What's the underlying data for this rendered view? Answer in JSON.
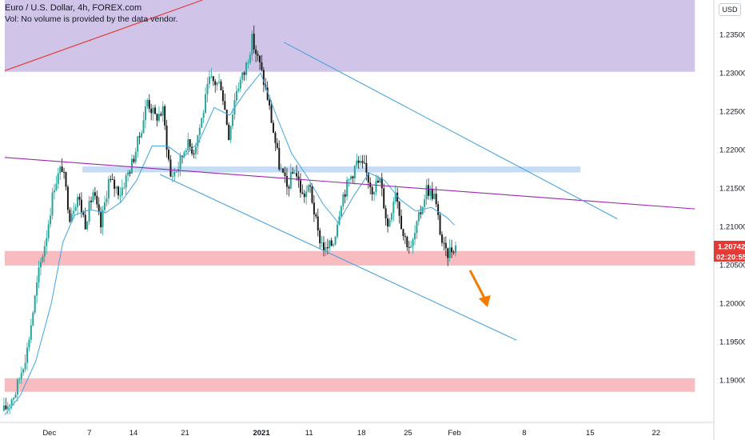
{
  "legend": {
    "title": "Euro / U.S. Dollar, 4h, FOREX.com",
    "volume_note": "Vol: No volume is provided by the data vendor."
  },
  "currency_button": "USD",
  "colors": {
    "up": "#26a69a",
    "down": "#1a1a1a",
    "ma": "#3da5e8",
    "channel": "#4aa3e0",
    "trend_red": "#e53935",
    "trend_purple": "#9c27b0",
    "zone_purple": "#d1c4e9",
    "zone_red": "#f8bbbf",
    "zone_blue": "#c6dcf5",
    "arrow": "#f57c00",
    "price_tag": "#e53935"
  },
  "chart_data": {
    "type": "candlestick",
    "symbol": "Euro / U.S. Dollar",
    "timeframe": "4h",
    "ylim": [
      1.1845,
      1.2395
    ],
    "y_ticks": [
      "1.23500",
      "1.23000",
      "1.22500",
      "1.22000",
      "1.21500",
      "1.21000",
      "1.20500",
      "1.20000",
      "1.19500",
      "1.19000"
    ],
    "x_ticks": [
      "Dec",
      "7",
      "14",
      "21",
      "2021",
      "11",
      "18",
      "25",
      "Feb",
      "8",
      "15",
      "22"
    ],
    "last_price": "1.20742",
    "countdown": "02:20:55",
    "close_path": [
      [
        0,
        1.186
      ],
      [
        4,
        1.1885
      ],
      [
        8,
        1.1935
      ],
      [
        11,
        1.202
      ],
      [
        13,
        1.207
      ],
      [
        15,
        1.211
      ],
      [
        16,
        1.2155
      ],
      [
        18,
        1.2128
      ],
      [
        20,
        1.2112
      ],
      [
        22,
        1.2125
      ],
      [
        24,
        1.21
      ],
      [
        26,
        1.213
      ],
      [
        28,
        1.2145
      ],
      [
        30,
        1.2165
      ],
      [
        32,
        1.2135
      ],
      [
        34,
        1.22
      ],
      [
        36,
        1.223
      ],
      [
        38,
        1.2255
      ],
      [
        40,
        1.2215
      ],
      [
        42,
        1.219
      ],
      [
        44,
        1.217
      ],
      [
        46,
        1.2195
      ],
      [
        48,
        1.221
      ],
      [
        50,
        1.2225
      ],
      [
        52,
        1.2265
      ],
      [
        54,
        1.229
      ],
      [
        56,
        1.2255
      ],
      [
        58,
        1.223
      ],
      [
        60,
        1.228
      ],
      [
        62,
        1.23
      ],
      [
        64,
        1.232
      ],
      [
        66,
        1.229
      ],
      [
        68,
        1.226
      ],
      [
        70,
        1.22
      ],
      [
        72,
        1.218
      ],
      [
        74,
        1.2165
      ],
      [
        76,
        1.215
      ],
      [
        78,
        1.2165
      ],
      [
        80,
        1.213
      ],
      [
        82,
        1.2095
      ],
      [
        84,
        1.2078
      ],
      [
        86,
        1.2105
      ],
      [
        88,
        1.214
      ],
      [
        90,
        1.2165
      ],
      [
        92,
        1.218
      ],
      [
        94,
        1.2175
      ],
      [
        96,
        1.216
      ],
      [
        98,
        1.214
      ],
      [
        100,
        1.213
      ],
      [
        102,
        1.211
      ],
      [
        104,
        1.21
      ],
      [
        106,
        1.2115
      ],
      [
        108,
        1.213
      ],
      [
        110,
        1.2115
      ],
      [
        112,
        1.209
      ],
      [
        114,
        1.2075
      ],
      [
        115,
        1.2065
      ],
      [
        116,
        1.2074
      ]
    ],
    "pivots": [
      [
        0,
        1.186
      ],
      [
        3,
        1.1885
      ],
      [
        6,
        1.194
      ],
      [
        9,
        1.204
      ],
      [
        11,
        1.209
      ],
      [
        13,
        1.2155
      ],
      [
        15,
        1.2178
      ],
      [
        17,
        1.2115
      ],
      [
        19,
        1.214
      ],
      [
        21,
        1.2105
      ],
      [
        23,
        1.2145
      ],
      [
        25,
        1.21
      ],
      [
        27,
        1.216
      ],
      [
        30,
        1.2145
      ],
      [
        33,
        1.2182
      ],
      [
        35,
        1.2218
      ],
      [
        37,
        1.2265
      ],
      [
        39,
        1.2242
      ],
      [
        41,
        1.225
      ],
      [
        43,
        1.2165
      ],
      [
        45,
        1.2178
      ],
      [
        47,
        1.2208
      ],
      [
        49,
        1.22
      ],
      [
        51,
        1.224
      ],
      [
        53,
        1.229
      ],
      [
        56,
        1.2285
      ],
      [
        58,
        1.222
      ],
      [
        60,
        1.228
      ],
      [
        62,
        1.23
      ],
      [
        64,
        1.2343
      ],
      [
        66,
        1.231
      ],
      [
        68,
        1.2268
      ],
      [
        71,
        1.218
      ],
      [
        73,
        1.215
      ],
      [
        75,
        1.2175
      ],
      [
        77,
        1.214
      ],
      [
        79,
        1.215
      ],
      [
        81,
        1.209
      ],
      [
        83,
        1.2068
      ],
      [
        85,
        1.208
      ],
      [
        87,
        1.2135
      ],
      [
        89,
        1.216
      ],
      [
        91,
        1.2183
      ],
      [
        93,
        1.2175
      ],
      [
        95,
        1.215
      ],
      [
        97,
        1.216
      ],
      [
        99,
        1.21
      ],
      [
        101,
        1.215
      ],
      [
        103,
        1.209
      ],
      [
        105,
        1.207
      ],
      [
        107,
        1.211
      ],
      [
        109,
        1.215
      ],
      [
        111,
        1.214
      ],
      [
        113,
        1.208
      ],
      [
        114,
        1.2063
      ],
      [
        116,
        1.2074
      ]
    ],
    "moving_average": [
      [
        0,
        1.1855
      ],
      [
        4,
        1.188
      ],
      [
        8,
        1.1925
      ],
      [
        12,
        1.2
      ],
      [
        15,
        1.208
      ],
      [
        18,
        1.2115
      ],
      [
        22,
        1.2122
      ],
      [
        26,
        1.2118
      ],
      [
        30,
        1.2132
      ],
      [
        34,
        1.216
      ],
      [
        38,
        1.2205
      ],
      [
        42,
        1.2205
      ],
      [
        46,
        1.219
      ],
      [
        50,
        1.221
      ],
      [
        54,
        1.2255
      ],
      [
        58,
        1.2245
      ],
      [
        62,
        1.2275
      ],
      [
        66,
        1.23
      ],
      [
        70,
        1.2245
      ],
      [
        74,
        1.2195
      ],
      [
        78,
        1.2165
      ],
      [
        82,
        1.213
      ],
      [
        86,
        1.2105
      ],
      [
        90,
        1.214
      ],
      [
        94,
        1.217
      ],
      [
        98,
        1.216
      ],
      [
        102,
        1.2135
      ],
      [
        106,
        1.212
      ],
      [
        110,
        1.2125
      ],
      [
        114,
        1.2112
      ],
      [
        116,
        1.2102
      ]
    ],
    "zones": [
      {
        "name": "purple-supply-zone",
        "color": "zone_purple",
        "y": [
          1.23015,
          1.2395
        ],
        "x": [
          0,
          178
        ]
      },
      {
        "name": "blue-resistance-zone",
        "color": "zone_blue",
        "y": [
          1.21705,
          1.21782
        ],
        "x": [
          20,
          148.5
        ]
      },
      {
        "name": "red-support-zone",
        "color": "zone_red",
        "y": [
          1.20493,
          1.20682
        ],
        "x": [
          0,
          178
        ]
      },
      {
        "name": "red-lower-zone",
        "color": "zone_red",
        "y": [
          1.18848,
          1.19025
        ],
        "x": [
          0,
          178
        ]
      }
    ],
    "trendlines": [
      {
        "name": "red-trendline",
        "color": "trend_red",
        "from": [
          0,
          1.2303
        ],
        "to": [
          51,
          1.2395
        ]
      },
      {
        "name": "purple-trendline",
        "color": "trend_purple",
        "from": [
          0,
          1.219
        ],
        "to": [
          178,
          1.2123
        ]
      },
      {
        "name": "channel-upper-line",
        "color": "channel",
        "from": [
          72,
          1.234
        ],
        "to": [
          158,
          1.211
        ]
      },
      {
        "name": "channel-lower-line",
        "color": "channel",
        "from": [
          40,
          1.2168
        ],
        "to": [
          132,
          1.1952
        ]
      }
    ],
    "arrow": {
      "from": [
        120,
        1.2043
      ],
      "to": [
        124.5,
        1.1995
      ]
    }
  }
}
